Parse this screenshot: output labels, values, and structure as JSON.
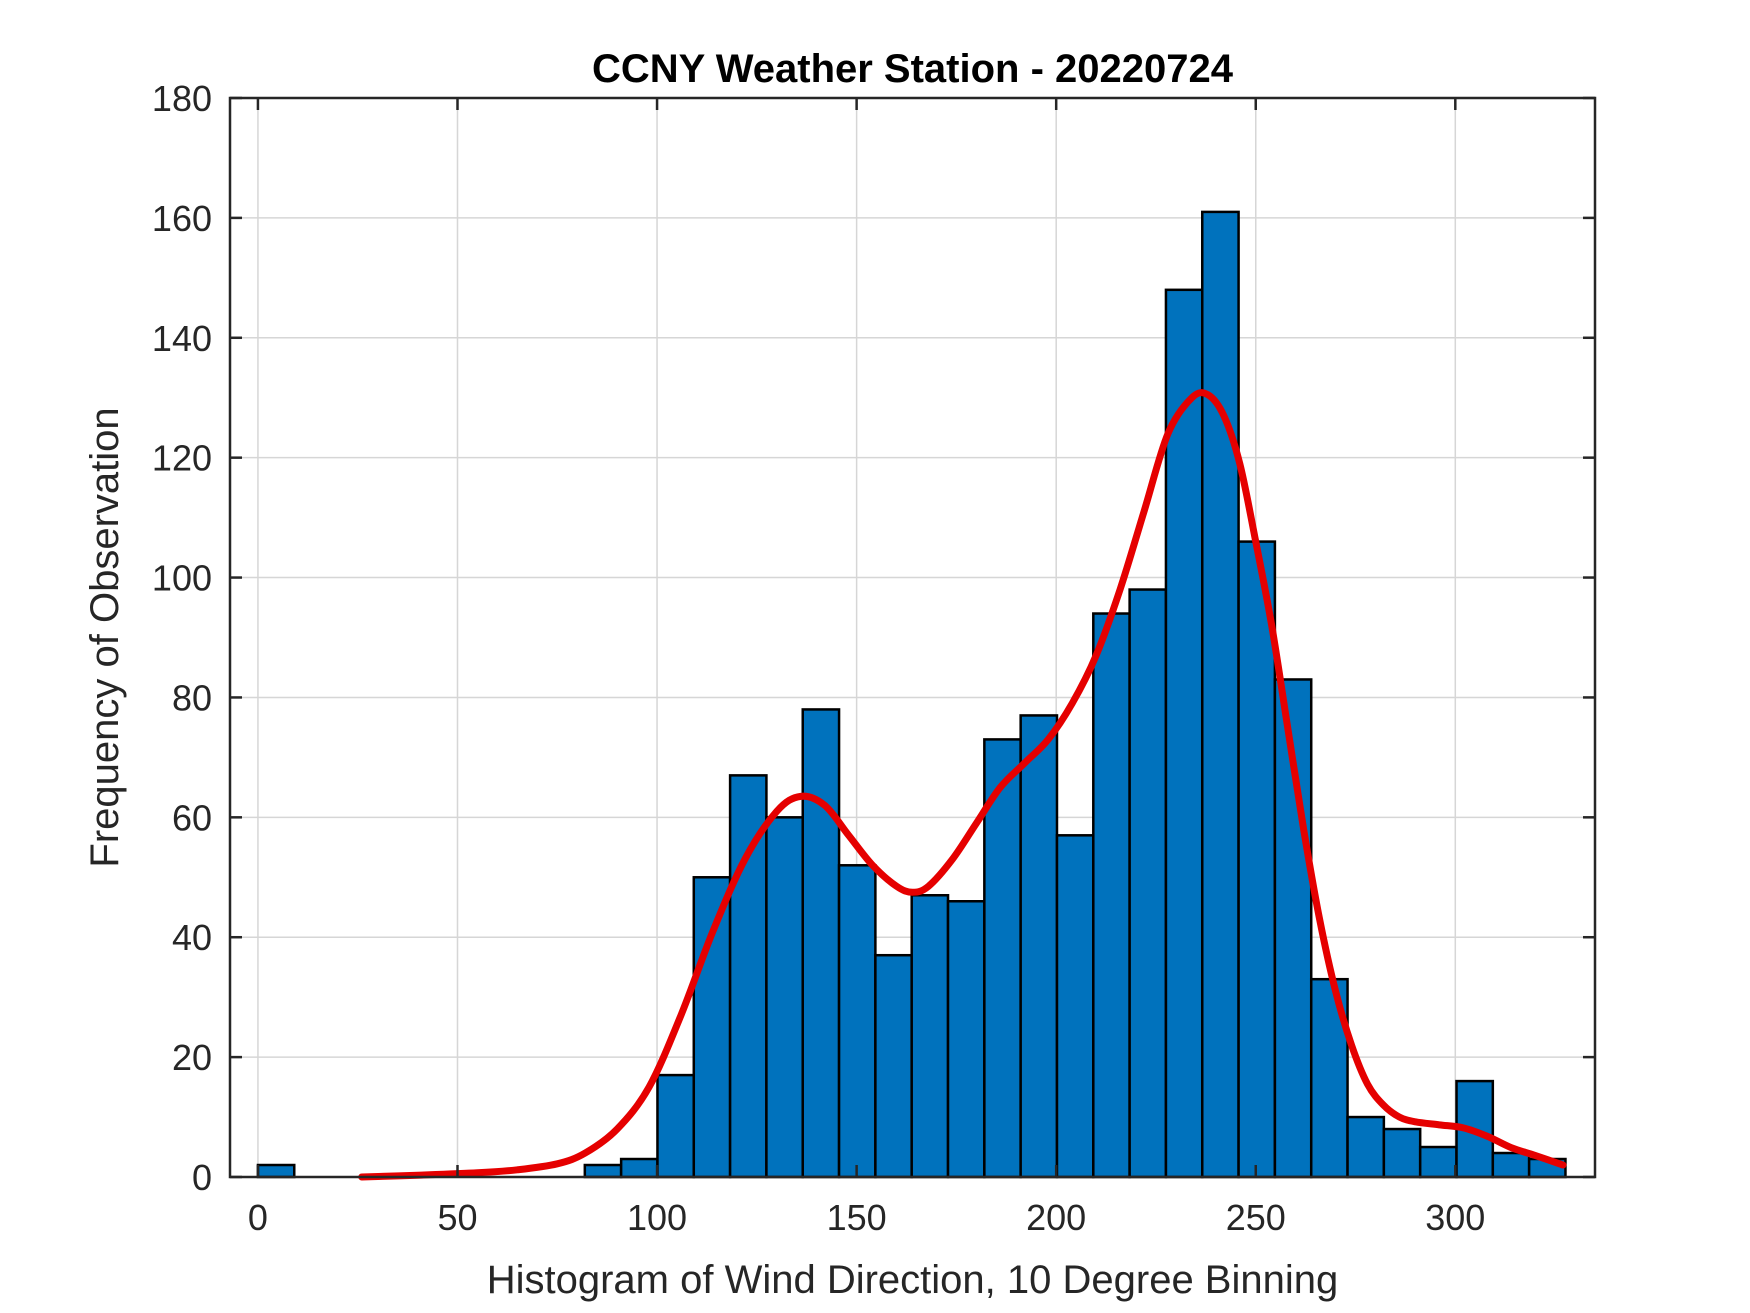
{
  "chart_data": {
    "type": "bar",
    "title": "CCNY Weather Station - 20220724",
    "xlabel": "Histogram of Wind Direction, 10 Degree Binning",
    "ylabel": "Frequency of Observation",
    "xlim": [
      -7,
      335
    ],
    "ylim": [
      0,
      180
    ],
    "xticks": [
      0,
      50,
      100,
      150,
      200,
      250,
      300
    ],
    "yticks": [
      0,
      20,
      40,
      60,
      80,
      100,
      120,
      140,
      160,
      180
    ],
    "grid": true,
    "bin_width": 9.1,
    "bins": [
      {
        "start": 0,
        "value": 2
      },
      {
        "start": 81.9,
        "value": 2
      },
      {
        "start": 91.0,
        "value": 3
      },
      {
        "start": 100.1,
        "value": 17
      },
      {
        "start": 109.2,
        "value": 50
      },
      {
        "start": 118.3,
        "value": 67
      },
      {
        "start": 127.4,
        "value": 60
      },
      {
        "start": 136.5,
        "value": 78
      },
      {
        "start": 145.6,
        "value": 52
      },
      {
        "start": 154.7,
        "value": 37
      },
      {
        "start": 163.8,
        "value": 47
      },
      {
        "start": 172.9,
        "value": 46
      },
      {
        "start": 182.0,
        "value": 73
      },
      {
        "start": 191.1,
        "value": 77
      },
      {
        "start": 200.2,
        "value": 57
      },
      {
        "start": 209.3,
        "value": 94
      },
      {
        "start": 218.4,
        "value": 98
      },
      {
        "start": 227.5,
        "value": 148
      },
      {
        "start": 236.6,
        "value": 161
      },
      {
        "start": 245.7,
        "value": 106
      },
      {
        "start": 254.8,
        "value": 83
      },
      {
        "start": 263.9,
        "value": 33
      },
      {
        "start": 273.0,
        "value": 10
      },
      {
        "start": 282.1,
        "value": 8
      },
      {
        "start": 291.2,
        "value": 5
      },
      {
        "start": 300.3,
        "value": 16
      },
      {
        "start": 309.4,
        "value": 4
      },
      {
        "start": 318.5,
        "value": 3
      }
    ],
    "fit_curve": {
      "name": "density fit",
      "x": [
        26,
        40,
        55,
        65,
        75,
        82,
        90,
        98,
        106,
        114,
        122,
        130,
        136,
        142,
        148,
        154,
        160,
        164,
        168,
        174,
        180,
        186,
        192,
        198,
        204,
        210,
        216,
        222,
        228,
        234,
        238,
        242,
        246,
        250,
        254,
        258,
        262,
        266,
        270,
        274,
        278,
        282,
        286,
        290,
        296,
        302,
        308,
        314,
        320,
        327
      ],
      "y": [
        0,
        0.3,
        0.7,
        1.2,
        2.2,
        4,
        8,
        15,
        27,
        41,
        53,
        61,
        63.5,
        62,
        57,
        52,
        48.5,
        47.5,
        48.5,
        53,
        59,
        65,
        69,
        73,
        79,
        87,
        98,
        111,
        124,
        130,
        130.5,
        127,
        119,
        106,
        92,
        75,
        58,
        43,
        31,
        22,
        15.5,
        12,
        10,
        9.2,
        8.7,
        8.2,
        6.8,
        4.9,
        3.6,
        2
      ]
    },
    "colors": {
      "bar_fill": "#0072bd",
      "fit_line": "#e50000"
    }
  }
}
